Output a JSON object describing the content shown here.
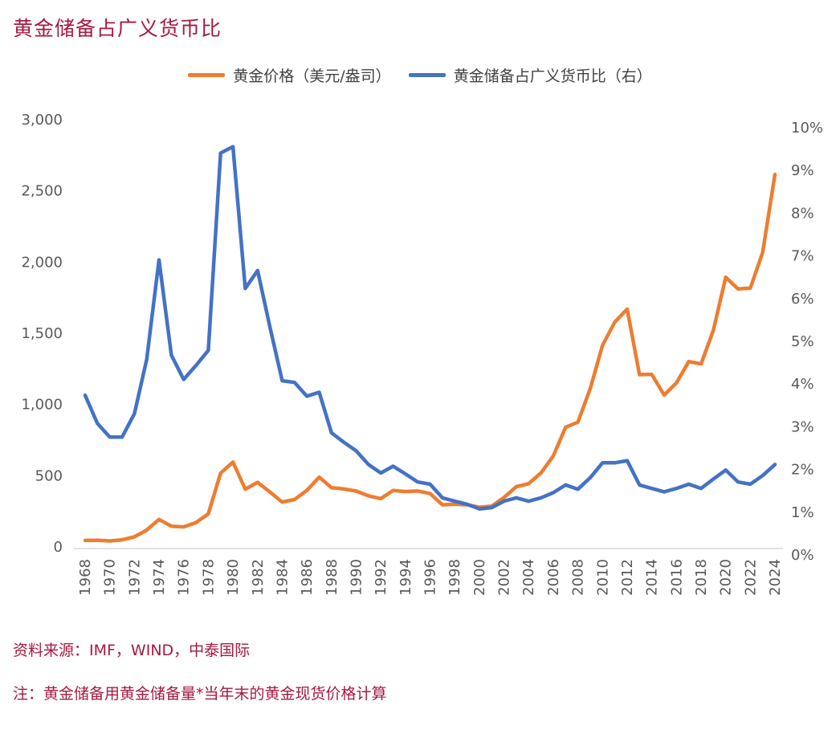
{
  "title": "黄金储备占广义货币比",
  "colors": {
    "gold_price": "#ED7D31",
    "reserve_ratio": "#4472C4",
    "title": "#a6193f"
  },
  "footer": {
    "source": "资料来源：IMF，WIND，中泰国际",
    "note": "注：黄金储备用黄金储备量*当年末的黄金现货价格计算"
  },
  "chart_data": {
    "type": "line",
    "title": "黄金储备占广义货币比",
    "legend_position": "top",
    "grid": false,
    "x": [
      1968,
      1969,
      1970,
      1971,
      1972,
      1973,
      1974,
      1975,
      1976,
      1977,
      1978,
      1979,
      1980,
      1981,
      1982,
      1983,
      1984,
      1985,
      1986,
      1987,
      1988,
      1989,
      1990,
      1991,
      1992,
      1993,
      1994,
      1995,
      1996,
      1997,
      1998,
      1999,
      2000,
      2001,
      2002,
      2003,
      2004,
      2005,
      2006,
      2007,
      2008,
      2009,
      2010,
      2011,
      2012,
      2013,
      2014,
      2015,
      2016,
      2017,
      2018,
      2019,
      2020,
      2021,
      2022,
      2023,
      2024
    ],
    "x_tick_labels": [
      "1968",
      "1970",
      "1972",
      "1974",
      "1976",
      "1978",
      "1980",
      "1982",
      "1984",
      "1986",
      "1988",
      "1990",
      "1992",
      "1994",
      "1996",
      "1998",
      "2000",
      "2002",
      "2004",
      "2006",
      "2008",
      "2010",
      "2012",
      "2014",
      "2016",
      "2018",
      "2020",
      "2022",
      "2024"
    ],
    "y_left": {
      "range": [
        0,
        3000
      ],
      "ticks": [
        "0",
        "500",
        "1,000",
        "1,500",
        "2,000",
        "2,500",
        "3,000"
      ]
    },
    "y_right": {
      "range": [
        0,
        10
      ],
      "ticks": [
        "0%",
        "1%",
        "2%",
        "3%",
        "4%",
        "5%",
        "6%",
        "7%",
        "8%",
        "9%",
        "10%"
      ]
    },
    "series": [
      {
        "name": "黄金价格（美元/盎司）",
        "axis": "left",
        "values": [
          40,
          41,
          36,
          44,
          65,
          112,
          187,
          140,
          135,
          165,
          226,
          512,
          590,
          400,
          448,
          380,
          309,
          327,
          391,
          484,
          410,
          401,
          386,
          353,
          333,
          391,
          383,
          387,
          369,
          290,
          294,
          290,
          273,
          280,
          342,
          417,
          438,
          514,
          632,
          834,
          870,
          1104,
          1410,
          1574,
          1664,
          1204,
          1206,
          1060,
          1146,
          1296,
          1279,
          1515,
          1888,
          1806,
          1812,
          2062,
          2610
        ]
      },
      {
        "name": "黄金储备占广义货币比（右）",
        "axis": "right",
        "values": [
          3.53,
          2.87,
          2.55,
          2.55,
          3.1,
          4.37,
          6.7,
          4.47,
          3.9,
          4.23,
          4.58,
          9.2,
          9.35,
          6.03,
          6.45,
          5.13,
          3.87,
          3.83,
          3.51,
          3.6,
          2.65,
          2.43,
          2.23,
          1.91,
          1.71,
          1.87,
          1.69,
          1.5,
          1.45,
          1.13,
          1.05,
          0.98,
          0.87,
          0.9,
          1.05,
          1.13,
          1.05,
          1.13,
          1.25,
          1.43,
          1.33,
          1.6,
          1.95,
          1.95,
          2.0,
          1.43,
          1.35,
          1.27,
          1.35,
          1.45,
          1.35,
          1.57,
          1.78,
          1.5,
          1.45,
          1.65,
          1.91
        ]
      }
    ]
  }
}
